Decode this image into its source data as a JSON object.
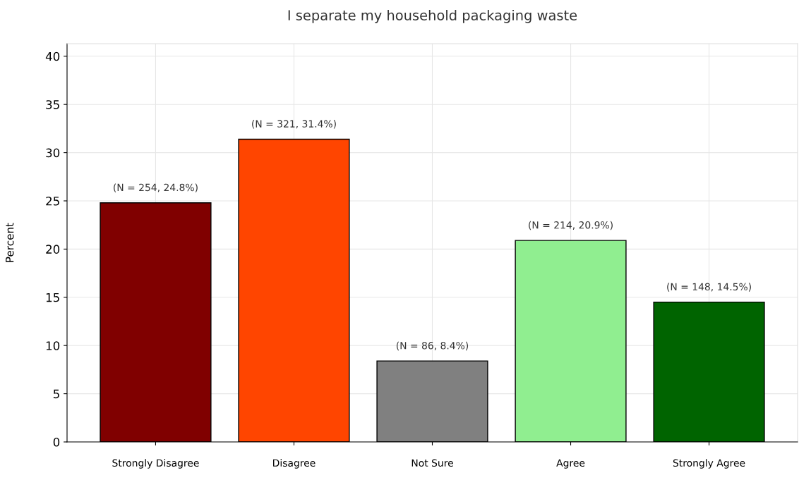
{
  "chart_data": {
    "type": "bar",
    "title": "I separate my household packaging waste",
    "ylabel": "Percent",
    "categories": [
      "Strongly Disagree",
      "Disagree",
      "Not Sure",
      "Agree",
      "Strongly Agree"
    ],
    "values": [
      24.8,
      31.4,
      8.4,
      20.9,
      14.5
    ],
    "colors": [
      "#800000",
      "#ff4500",
      "#808080",
      "#90ee90",
      "#006400"
    ],
    "value_labels": [
      "(N = 254, 24.8%)",
      "(N = 321, 31.4%)",
      "(N = 86, 8.4%)",
      "(N = 214, 20.9%)",
      "(N = 148, 14.5%)"
    ],
    "ylim": [
      0,
      41.3
    ],
    "yticks": [
      0,
      5,
      10,
      15,
      20,
      25,
      30,
      35,
      40
    ],
    "grid": true
  }
}
